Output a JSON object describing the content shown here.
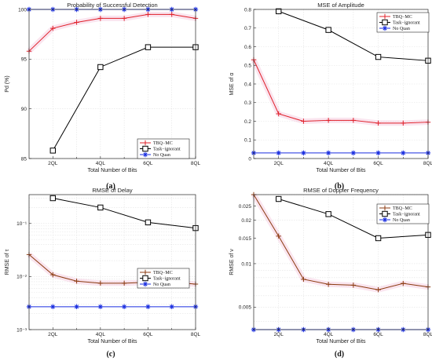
{
  "chart_data": [
    {
      "type": "line",
      "title": "Probability of Successful Detection",
      "xlabel": "Total Number of Bits",
      "ylabel": "Pd (%)",
      "caption": "(a)",
      "x": [
        1,
        2,
        3,
        4,
        5,
        6,
        7,
        8
      ],
      "xlim": [
        1,
        8
      ],
      "xticks": [
        2,
        4,
        6,
        8
      ],
      "xticklabels": [
        "2QL",
        "4QL",
        "6QL",
        "8QL"
      ],
      "yscale": "linear",
      "ylim": [
        85,
        100
      ],
      "yticks": [
        85,
        90,
        95,
        100
      ],
      "yticklabels": [
        "85",
        "90",
        "95",
        "100"
      ],
      "grid": true,
      "legend_position": "bottom-right",
      "series": [
        {
          "name": "TBQ−MC",
          "color": "#e0202a",
          "marker": "plus",
          "values": [
            95.8,
            98.1,
            98.7,
            99.1,
            99.1,
            99.5,
            99.5,
            99.1
          ]
        },
        {
          "name": "Task−ignorant",
          "color": "#000000",
          "marker": "square",
          "values": [
            null,
            85.8,
            null,
            94.2,
            null,
            96.2,
            null,
            96.2
          ]
        },
        {
          "name": "No Quan",
          "color": "#1a2ee0",
          "marker": "star",
          "values": [
            100,
            100,
            100,
            100,
            100,
            100,
            100,
            100
          ]
        }
      ]
    },
    {
      "type": "line",
      "title": "MSE of Amplitude",
      "xlabel": "Total Number of Bits",
      "ylabel": "MSE of α",
      "caption": "(b)",
      "x": [
        1,
        2,
        3,
        4,
        5,
        6,
        7,
        8
      ],
      "xlim": [
        1,
        8
      ],
      "xticks": [
        2,
        4,
        6,
        8
      ],
      "xticklabels": [
        "2QL",
        "4QL",
        "6QL",
        "8QL"
      ],
      "yscale": "linear",
      "ylim": [
        0,
        0.8
      ],
      "yticks": [
        0,
        0.1,
        0.2,
        0.3,
        0.4,
        0.5,
        0.6,
        0.7,
        0.8
      ],
      "yticklabels": [
        "0",
        "0.1",
        "0.2",
        "0.3",
        "0.4",
        "0.5",
        "0.6",
        "0.7",
        "0.8"
      ],
      "grid": true,
      "legend_position": "top-right",
      "series": [
        {
          "name": "TBQ−MC",
          "color": "#e0202a",
          "marker": "plus",
          "values": [
            0.53,
            0.24,
            0.2,
            0.205,
            0.205,
            0.19,
            0.19,
            0.195
          ]
        },
        {
          "name": "Task−ignorant",
          "color": "#000000",
          "marker": "square",
          "values": [
            null,
            0.79,
            null,
            0.69,
            null,
            0.545,
            null,
            0.525
          ]
        },
        {
          "name": "No Quan",
          "color": "#1a2ee0",
          "marker": "star",
          "values": [
            0.03,
            0.03,
            0.03,
            0.03,
            0.03,
            0.03,
            0.03,
            0.03
          ]
        }
      ]
    },
    {
      "type": "line",
      "title": "RMSE of Delay",
      "xlabel": "Total Number of Bits",
      "ylabel": "RMSE of τ",
      "caption": "(c)",
      "x": [
        1,
        2,
        3,
        4,
        5,
        6,
        7,
        8
      ],
      "xlim": [
        1,
        8
      ],
      "xticks": [
        2,
        4,
        6,
        8
      ],
      "xticklabels": [
        "2QL",
        "4QL",
        "6QL",
        "8QL"
      ],
      "yscale": "log",
      "ylim": [
        0.001,
        0.35
      ],
      "yticks": [
        0.001,
        0.01,
        0.1
      ],
      "yticklabels": [
        "10⁻³",
        "10⁻²",
        "10⁻¹"
      ],
      "grid": true,
      "legend_position": "center-right",
      "series": [
        {
          "name": "TBQ−MC",
          "color": "#8b3a10",
          "marker": "plus",
          "values": [
            0.026,
            0.0108,
            0.0082,
            0.0075,
            0.0075,
            0.0078,
            0.0078,
            0.0072
          ]
        },
        {
          "name": "Task−ignorant",
          "color": "#000000",
          "marker": "square",
          "values": [
            null,
            0.3,
            null,
            0.2,
            null,
            0.105,
            null,
            0.082
          ]
        },
        {
          "name": "No Quan",
          "color": "#1a2ee0",
          "marker": "star",
          "values": [
            0.0027,
            0.0027,
            0.0027,
            0.0027,
            0.0027,
            0.0027,
            0.0027,
            0.0027
          ]
        }
      ]
    },
    {
      "type": "line",
      "title": "RMSE of Doppler Frequency",
      "xlabel": "Total Number of Bits",
      "ylabel": "RMSE of ν",
      "caption": "(d)",
      "x": [
        1,
        2,
        3,
        4,
        5,
        6,
        7,
        8
      ],
      "xlim": [
        1,
        8
      ],
      "xticks": [
        2,
        4,
        6,
        8
      ],
      "xticklabels": [
        "2QL",
        "4QL",
        "6QL",
        "8QL"
      ],
      "yscale": "log",
      "ylim": [
        0.0035,
        0.03
      ],
      "yticks": [
        0.005,
        0.01,
        0.015,
        0.02,
        0.025
      ],
      "yticklabels": [
        "0.005",
        "0.01",
        "0.015",
        "0.02",
        "0.025"
      ],
      "grid": true,
      "legend_position": "top-right",
      "series": [
        {
          "name": "TBQ−MC",
          "color": "#8b3a10",
          "marker": "plus",
          "values": [
            0.03,
            0.0155,
            0.0078,
            0.0072,
            0.0071,
            0.0066,
            0.0073,
            0.0069
          ]
        },
        {
          "name": "Task−ignorant",
          "color": "#000000",
          "marker": "square",
          "values": [
            null,
            0.028,
            null,
            0.022,
            null,
            0.015,
            null,
            0.0158
          ]
        },
        {
          "name": "No Quan",
          "color": "#1a2ee0",
          "marker": "star",
          "values": [
            0.0035,
            0.0035,
            0.0035,
            0.0035,
            0.0035,
            0.0035,
            0.0035,
            0.0035
          ]
        }
      ]
    }
  ]
}
